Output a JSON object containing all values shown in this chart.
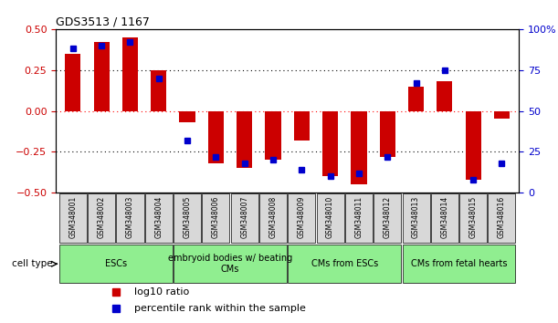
{
  "title": "GDS3513 / 1167",
  "samples": [
    "GSM348001",
    "GSM348002",
    "GSM348003",
    "GSM348004",
    "GSM348005",
    "GSM348006",
    "GSM348007",
    "GSM348008",
    "GSM348009",
    "GSM348010",
    "GSM348011",
    "GSM348012",
    "GSM348013",
    "GSM348014",
    "GSM348015",
    "GSM348016"
  ],
  "log10_ratio": [
    0.35,
    0.42,
    0.45,
    0.25,
    -0.07,
    -0.32,
    -0.35,
    -0.3,
    -0.18,
    -0.4,
    -0.45,
    -0.28,
    0.15,
    0.18,
    -0.42,
    -0.05
  ],
  "percentile_rank": [
    88,
    90,
    92,
    70,
    32,
    22,
    18,
    20,
    14,
    10,
    12,
    22,
    67,
    75,
    8,
    18
  ],
  "bar_color": "#cc0000",
  "dot_color": "#0000cc",
  "ylim_left": [
    -0.5,
    0.5
  ],
  "ylim_right": [
    0,
    100
  ],
  "yticks_left": [
    -0.5,
    -0.25,
    0,
    0.25,
    0.5
  ],
  "yticks_right": [
    0,
    25,
    50,
    75,
    100
  ],
  "ytick_labels_right": [
    "0",
    "25",
    "50",
    "75",
    "100%"
  ],
  "groups": [
    {
      "label": "ESCs",
      "start": 0,
      "end": 3,
      "color": "#90ee90"
    },
    {
      "label": "embryoid bodies w/ beating\nCMs",
      "start": 4,
      "end": 7,
      "color": "#90ee90"
    },
    {
      "label": "CMs from ESCs",
      "start": 8,
      "end": 11,
      "color": "#90ee90"
    },
    {
      "label": "CMs from fetal hearts",
      "start": 12,
      "end": 15,
      "color": "#90ee90"
    }
  ],
  "legend_items": [
    {
      "label": "log10 ratio",
      "color": "#cc0000"
    },
    {
      "label": "percentile rank within the sample",
      "color": "#0000cc"
    }
  ],
  "cell_type_label": "cell type",
  "bar_width": 0.55,
  "figsize": [
    6.11,
    3.54
  ],
  "dpi": 100
}
